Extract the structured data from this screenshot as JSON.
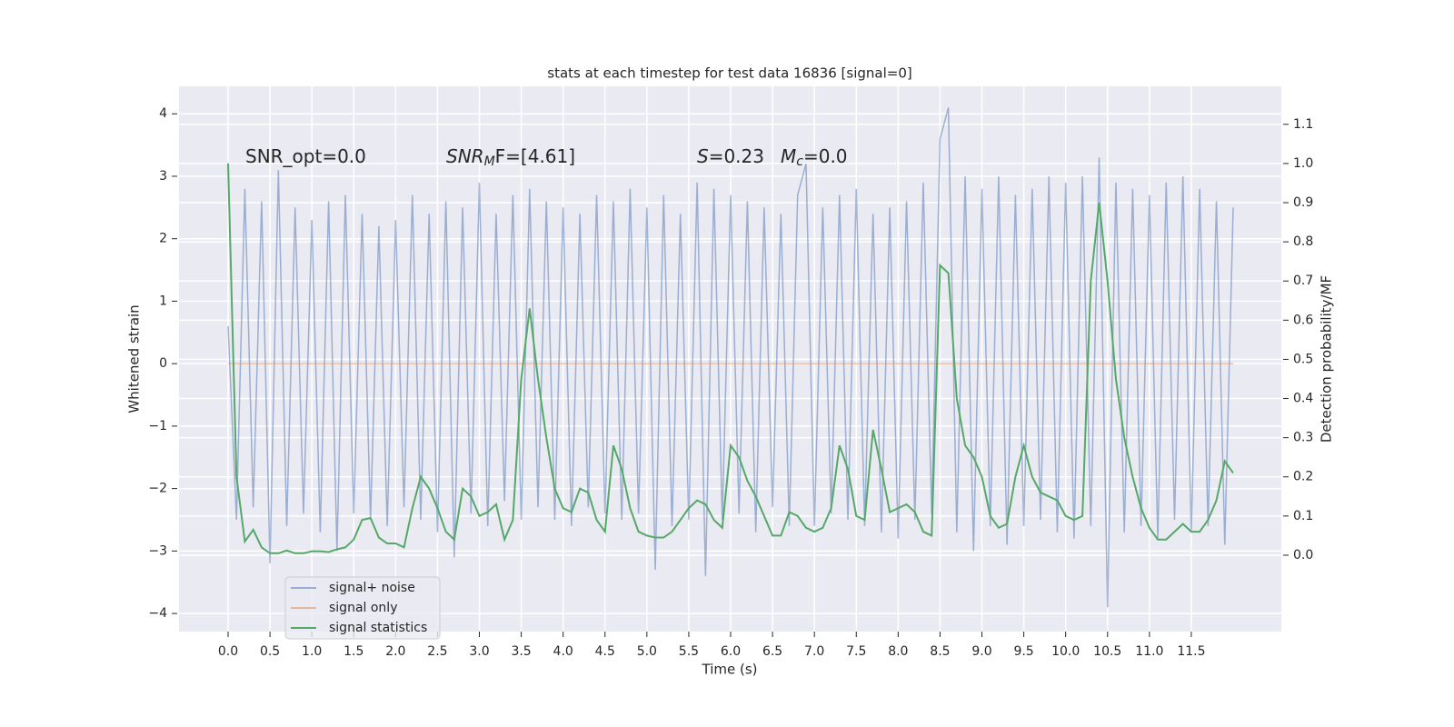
{
  "chart_data": {
    "type": "line",
    "title": "stats at each timestep for test data 16836 [signal=0]",
    "xlabel": "Time (s)",
    "ylabel": "Whitened strain",
    "y2label": "Detection probability/MF",
    "annotations": [
      {
        "text": "SNR_opt=0.0"
      },
      {
        "base": "SNR",
        "sub": "M",
        "rest": "F=[4.61]"
      },
      {
        "base": "S",
        "rest": "=0.23"
      },
      {
        "base": "M",
        "sub": "c",
        "rest": "=0.0"
      }
    ],
    "grid": true,
    "legend": "lower left",
    "xlim": [
      -0.586,
      12.575
    ],
    "ylim": [
      -4.29,
      4.44
    ],
    "y2lim": [
      -0.195,
      1.197
    ],
    "xticks": [
      {
        "value": 0,
        "label": "0.0"
      },
      {
        "value": 0.5,
        "label": "0.5"
      },
      {
        "value": 1,
        "label": "1.0"
      },
      {
        "value": 1.5,
        "label": "1.5"
      },
      {
        "value": 2,
        "label": "2.0"
      },
      {
        "value": 2.5,
        "label": "2.5"
      },
      {
        "value": 3,
        "label": "3.0"
      },
      {
        "value": 3.5,
        "label": "3.5"
      },
      {
        "value": 4,
        "label": "4.0"
      },
      {
        "value": 4.5,
        "label": "4.5"
      },
      {
        "value": 5,
        "label": "5.0"
      },
      {
        "value": 5.5,
        "label": "5.5"
      },
      {
        "value": 6,
        "label": "6.0"
      },
      {
        "value": 6.5,
        "label": "6.5"
      },
      {
        "value": 7,
        "label": "7.0"
      },
      {
        "value": 7.5,
        "label": "7.5"
      },
      {
        "value": 8,
        "label": "8.0"
      },
      {
        "value": 8.5,
        "label": "8.5"
      },
      {
        "value": 9,
        "label": "9.0"
      },
      {
        "value": 9.5,
        "label": "9.5"
      },
      {
        "value": 10,
        "label": "10.0"
      },
      {
        "value": 10.5,
        "label": "10.5"
      },
      {
        "value": 11,
        "label": "11.0"
      },
      {
        "value": 11.5,
        "label": "11.5"
      }
    ],
    "yticks": [
      {
        "value": -4,
        "label": "−4"
      },
      {
        "value": -3,
        "label": "−3"
      },
      {
        "value": -2,
        "label": "−2"
      },
      {
        "value": -1,
        "label": "−1"
      },
      0,
      1,
      2,
      3,
      4
    ],
    "y2ticks": [
      {
        "value": 0,
        "label": "0.0"
      },
      {
        "value": 0.1,
        "label": "0.1"
      },
      {
        "value": 0.2,
        "label": "0.2"
      },
      {
        "value": 0.3,
        "label": "0.3"
      },
      {
        "value": 0.4,
        "label": "0.4"
      },
      {
        "value": 0.5,
        "label": "0.5"
      },
      {
        "value": 0.6,
        "label": "0.6"
      },
      {
        "value": 0.7,
        "label": "0.7"
      },
      {
        "value": 0.8,
        "label": "0.8"
      },
      {
        "value": 0.9,
        "label": "0.9"
      },
      {
        "value": 1,
        "label": "1.0"
      },
      {
        "value": 1.1,
        "label": "1.1"
      }
    ],
    "x": [
      0,
      0.1,
      0.2,
      0.3,
      0.4,
      0.5,
      0.6,
      0.7,
      0.8,
      0.9,
      1,
      1.1,
      1.2,
      1.3,
      1.4,
      1.5,
      1.6,
      1.7,
      1.8,
      1.9,
      2,
      2.1,
      2.2,
      2.3,
      2.4,
      2.5,
      2.6,
      2.7,
      2.8,
      2.9,
      3,
      3.1,
      3.2,
      3.3,
      3.4,
      3.5,
      3.6,
      3.7,
      3.8,
      3.9,
      4,
      4.1,
      4.2,
      4.3,
      4.4,
      4.5,
      4.6,
      4.7,
      4.8,
      4.9,
      5,
      5.1,
      5.2,
      5.3,
      5.4,
      5.5,
      5.6,
      5.7,
      5.8,
      5.9,
      6,
      6.1,
      6.2,
      6.3,
      6.4,
      6.5,
      6.6,
      6.7,
      6.8,
      6.9,
      7,
      7.1,
      7.2,
      7.3,
      7.4,
      7.5,
      7.6,
      7.7,
      7.8,
      7.9,
      8,
      8.1,
      8.2,
      8.3,
      8.4,
      8.5,
      8.6,
      8.7,
      8.8,
      8.9,
      9,
      9.1,
      9.2,
      9.3,
      9.4,
      9.5,
      9.6,
      9.7,
      9.8,
      9.9,
      10,
      10.1,
      10.2,
      10.3,
      10.4,
      10.5,
      10.6,
      10.7,
      10.8,
      10.9,
      11,
      11.1,
      11.2,
      11.3,
      11.4,
      11.5,
      11.6,
      11.7,
      11.8,
      11.9,
      12
    ],
    "series": [
      {
        "name": "signal+ noise",
        "color": "#4c72b0",
        "values": [
          0.6,
          -2.5,
          2.8,
          -2.3,
          2.6,
          -3.2,
          3.1,
          -2.6,
          2.5,
          -2.4,
          2.3,
          -2.7,
          2.6,
          -3.0,
          2.7,
          -2.4,
          2.4,
          -2.5,
          2.2,
          -2.6,
          2.3,
          -2.3,
          2.7,
          -2.5,
          2.4,
          -2.7,
          2.6,
          -3.1,
          2.5,
          -2.4,
          2.9,
          -2.6,
          2.4,
          -2.2,
          2.7,
          -2.5,
          2.8,
          -2.3,
          2.6,
          -2.5,
          2.5,
          -2.6,
          2.4,
          -2.3,
          2.7,
          -2.4,
          2.6,
          -2.5,
          2.8,
          -2.4,
          2.5,
          -3.3,
          2.7,
          -2.6,
          2.4,
          -2.5,
          2.9,
          -3.4,
          2.8,
          -2.5,
          2.7,
          -2.4,
          2.6,
          -2.7,
          2.5,
          -2.3,
          2.4,
          -2.6,
          2.7,
          3.2,
          -2.6,
          2.5,
          -2.4,
          2.7,
          -2.5,
          2.8,
          -2.6,
          2.4,
          -2.7,
          2.5,
          -2.8,
          2.6,
          -2.5,
          2.9,
          -2.4,
          3.6,
          4.1,
          -2.7,
          3.0,
          -3.0,
          2.8,
          -2.6,
          3.0,
          -2.9,
          2.7,
          -2.6,
          2.8,
          -2.5,
          3.0,
          -2.7,
          2.9,
          -2.8,
          3.0,
          -2.6,
          3.3,
          -3.9,
          2.9,
          -2.7,
          2.8,
          -2.6,
          2.7,
          -2.8,
          2.9,
          -2.5,
          3.0,
          -2.7,
          2.8,
          -2.6,
          2.6,
          -2.9,
          2.5
        ]
      },
      {
        "name": "signal only",
        "color": "#dd8452",
        "x": [
          0,
          12
        ],
        "values": [
          0,
          0
        ]
      },
      {
        "name": "signal statistics",
        "color": "#55a868",
        "axis": "y2",
        "values": [
          1.0,
          0.2,
          0.035,
          0.065,
          0.02,
          0.005,
          0.005,
          0.012,
          0.005,
          0.005,
          0.01,
          0.01,
          0.008,
          0.015,
          0.02,
          0.04,
          0.09,
          0.095,
          0.045,
          0.03,
          0.03,
          0.02,
          0.12,
          0.2,
          0.17,
          0.12,
          0.06,
          0.04,
          0.17,
          0.15,
          0.1,
          0.11,
          0.13,
          0.04,
          0.09,
          0.45,
          0.63,
          0.45,
          0.3,
          0.17,
          0.12,
          0.11,
          0.17,
          0.16,
          0.09,
          0.06,
          0.28,
          0.22,
          0.12,
          0.06,
          0.05,
          0.045,
          0.045,
          0.06,
          0.09,
          0.12,
          0.14,
          0.13,
          0.09,
          0.07,
          0.28,
          0.25,
          0.19,
          0.15,
          0.1,
          0.05,
          0.05,
          0.11,
          0.1,
          0.07,
          0.06,
          0.07,
          0.12,
          0.28,
          0.22,
          0.1,
          0.09,
          0.32,
          0.22,
          0.11,
          0.12,
          0.13,
          0.11,
          0.06,
          0.05,
          0.74,
          0.72,
          0.4,
          0.28,
          0.25,
          0.2,
          0.1,
          0.07,
          0.08,
          0.2,
          0.28,
          0.2,
          0.16,
          0.15,
          0.14,
          0.1,
          0.09,
          0.1,
          0.7,
          0.9,
          0.7,
          0.45,
          0.3,
          0.2,
          0.12,
          0.07,
          0.04,
          0.04,
          0.06,
          0.08,
          0.06,
          0.06,
          0.09,
          0.14,
          0.24,
          0.21
        ]
      }
    ]
  }
}
